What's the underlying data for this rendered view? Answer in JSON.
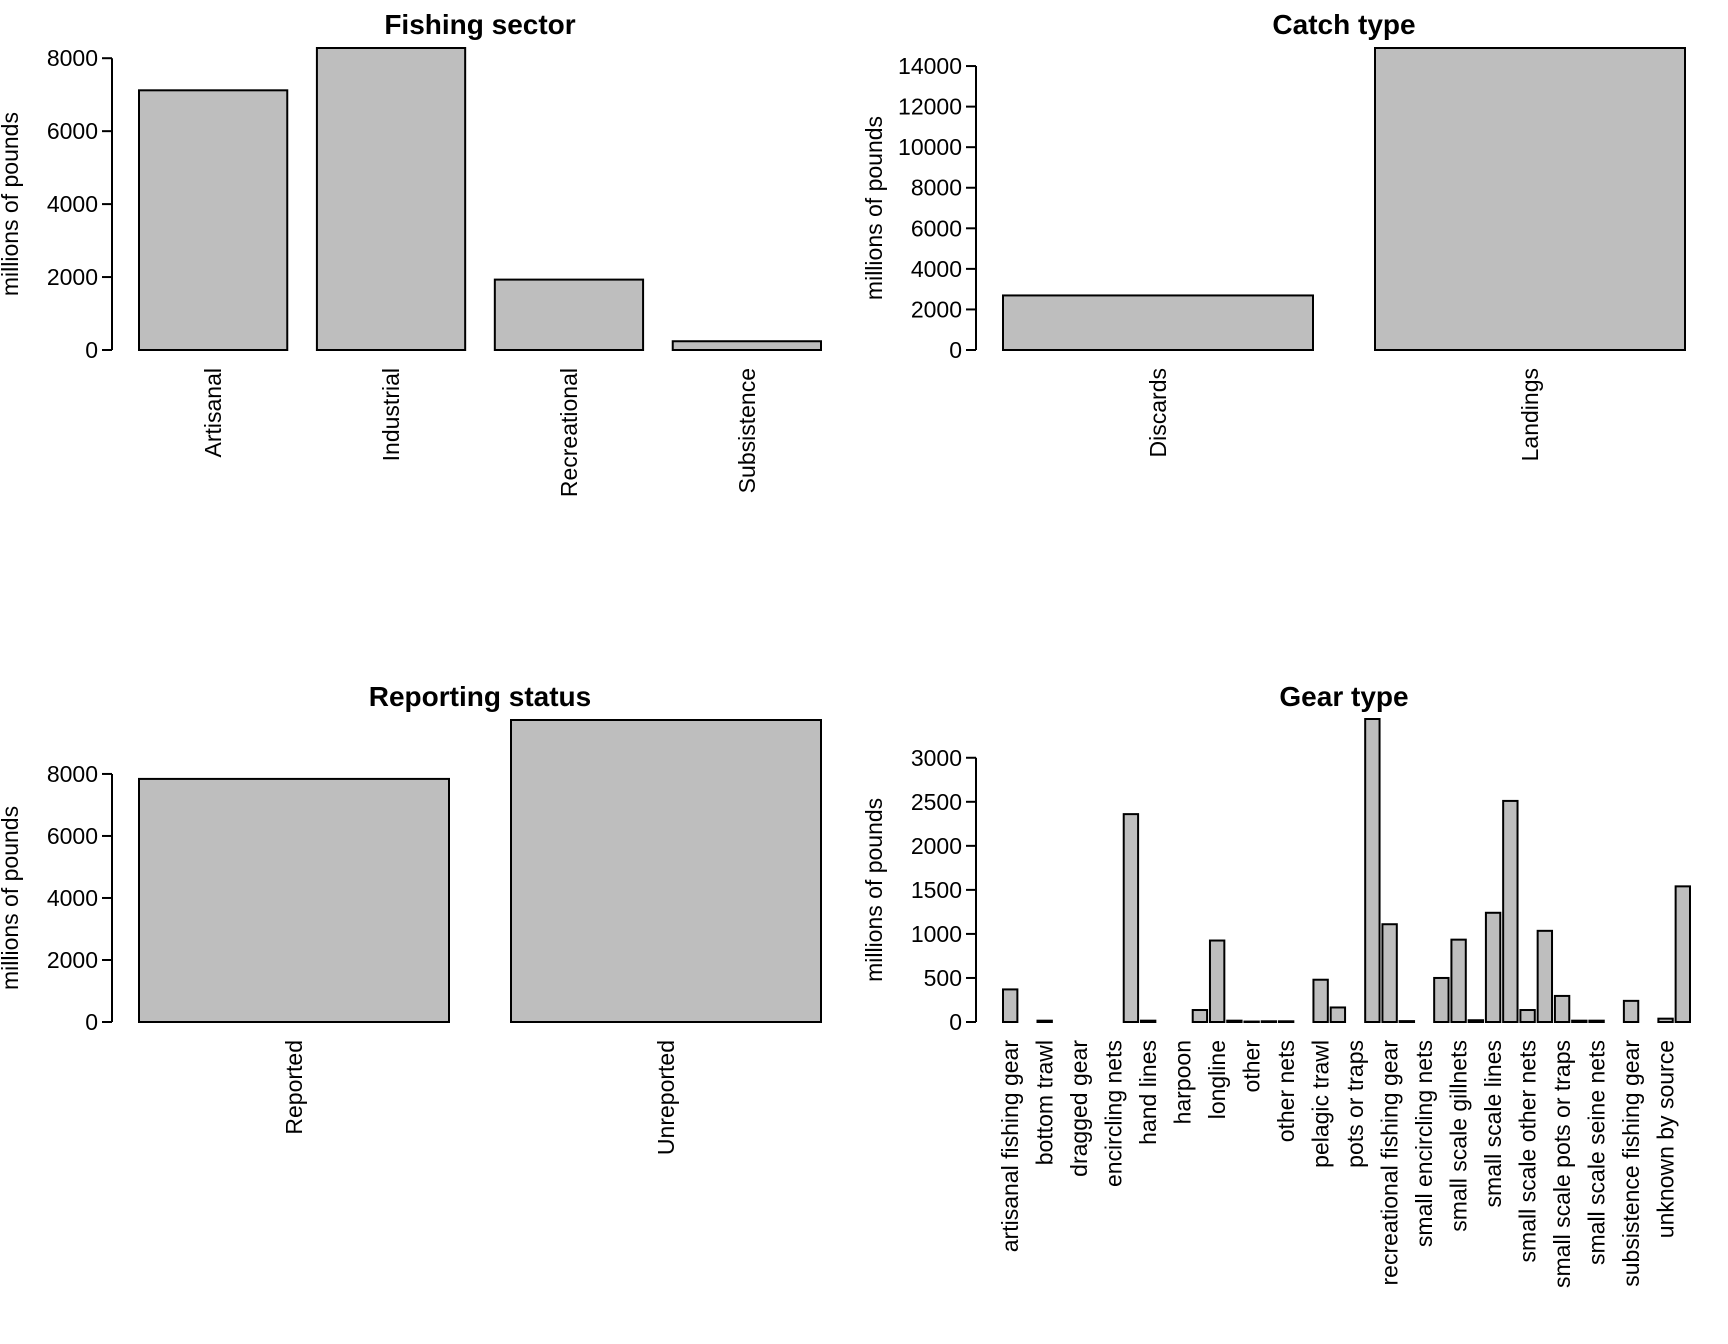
{
  "figure": {
    "bar_fill": "#bebebe",
    "bar_stroke": "#000000"
  },
  "chart_data": [
    {
      "id": "fishing-sector",
      "type": "bar",
      "title": "Fishing sector",
      "xlabel": "",
      "ylabel": "millions of pounds",
      "categories": [
        "Artisanal",
        "Industrial",
        "Recreational",
        "Subsistence"
      ],
      "values": [
        7120,
        8280,
        1930,
        240
      ],
      "yticks": [
        0,
        2000,
        4000,
        6000,
        8000
      ],
      "ylim": [
        0,
        8280
      ],
      "grid": false,
      "legend": null
    },
    {
      "id": "catch-type",
      "type": "bar",
      "title": "Catch type",
      "xlabel": "",
      "ylabel": "millions of pounds",
      "categories": [
        "Discards",
        "Landings"
      ],
      "values": [
        2690,
        14890
      ],
      "yticks": [
        0,
        2000,
        4000,
        6000,
        8000,
        10000,
        12000,
        14000
      ],
      "ylim": [
        0,
        14890
      ],
      "grid": false,
      "legend": null
    },
    {
      "id": "reporting-status",
      "type": "bar",
      "title": "Reporting status",
      "xlabel": "",
      "ylabel": "millions of pounds",
      "categories": [
        "Reported",
        "Unreported"
      ],
      "values": [
        7840,
        9740
      ],
      "yticks": [
        0,
        2000,
        4000,
        6000,
        8000
      ],
      "ylim": [
        0,
        9740
      ],
      "grid": false,
      "legend": null
    },
    {
      "id": "gear-type",
      "type": "bar",
      "title": "Gear type",
      "xlabel": "",
      "ylabel": "millions of pounds",
      "note": "40 bars; only every other category label is rendered (hidden labels left empty)",
      "categories": [
        "artisanal fishing gear",
        "",
        "bottom trawl",
        "",
        "dragged gear",
        "",
        "encircling nets",
        "",
        "hand lines",
        "",
        "harpoon",
        "",
        "longline",
        "",
        "other",
        "",
        "other nets",
        "",
        "pelagic trawl",
        "",
        "pots or traps",
        "",
        "recreational fishing gear",
        "",
        "small encircling nets",
        "",
        "small scale gillnets",
        "",
        "small scale lines",
        "",
        "small scale other nets",
        "",
        "small scale pots or traps",
        "",
        "small scale seine nets",
        "",
        "subsistence fishing gear",
        "",
        "unknown by source",
        ""
      ],
      "values": [
        370,
        0,
        15,
        0,
        0,
        0,
        0,
        2360,
        15,
        0,
        0,
        136,
        925,
        15,
        5,
        8,
        8,
        0,
        480,
        165,
        0,
        3440,
        1110,
        10,
        0,
        500,
        935,
        20,
        1240,
        2510,
        136,
        1035,
        296,
        15,
        15,
        0,
        240,
        0,
        38,
        1540
      ],
      "yticks": [
        0,
        500,
        1000,
        1500,
        2000,
        2500,
        3000
      ],
      "ylim": [
        0,
        3440
      ],
      "grid": false,
      "legend": null
    }
  ]
}
